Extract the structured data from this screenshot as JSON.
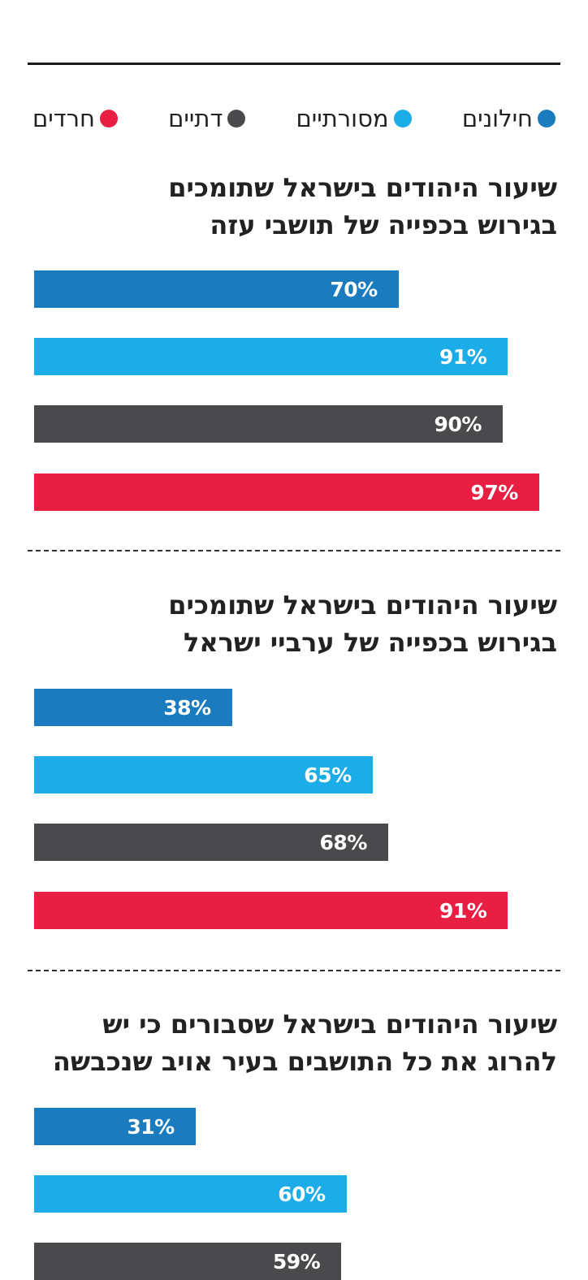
{
  "legend": [
    {
      "label": "חילונים",
      "color": "#1a7bbf"
    },
    {
      "label": "מסורתיים",
      "color": "#1cace8"
    },
    {
      "label": "דתיים",
      "color": "#4a4a4d"
    },
    {
      "label": "חרדים",
      "color": "#e81e43"
    }
  ],
  "chart_data": [
    {
      "type": "bar",
      "orientation": "horizontal",
      "title_lines": [
        "שיעור היהודים בישראל שתומכים",
        "בגירוש בכפייה של תושבי עזה"
      ],
      "categories": [
        "חילונים",
        "מסורתיים",
        "דתיים",
        "חרדים"
      ],
      "values": [
        70,
        91,
        90,
        97
      ],
      "labels": [
        "70%",
        "91%",
        "90%",
        "97%"
      ],
      "colors": [
        "#1a7bbf",
        "#1cace8",
        "#4a4a4d",
        "#e81e43"
      ],
      "xlim": [
        0,
        100
      ]
    },
    {
      "type": "bar",
      "orientation": "horizontal",
      "title_lines": [
        "שיעור היהודים בישראל שתומכים",
        "בגירוש בכפייה של ערביי ישראל"
      ],
      "categories": [
        "חילונים",
        "מסורתיים",
        "דתיים",
        "חרדים"
      ],
      "values": [
        38,
        65,
        68,
        91
      ],
      "labels": [
        "38%",
        "65%",
        "68%",
        "91%"
      ],
      "colors": [
        "#1a7bbf",
        "#1cace8",
        "#4a4a4d",
        "#e81e43"
      ],
      "xlim": [
        0,
        100
      ]
    },
    {
      "type": "bar",
      "orientation": "horizontal",
      "title_lines": [
        "שיעור היהודים בישראל שסבורים כי יש",
        "להרוג את כל התושבים בעיר אויב שנכבשה"
      ],
      "categories": [
        "חילונים",
        "מסורתיים",
        "דתיים"
      ],
      "values": [
        31,
        60,
        59
      ],
      "labels": [
        "31%",
        "60%",
        "59%"
      ],
      "colors": [
        "#1a7bbf",
        "#1cace8",
        "#4a4a4d"
      ],
      "xlim": [
        0,
        100
      ]
    }
  ]
}
